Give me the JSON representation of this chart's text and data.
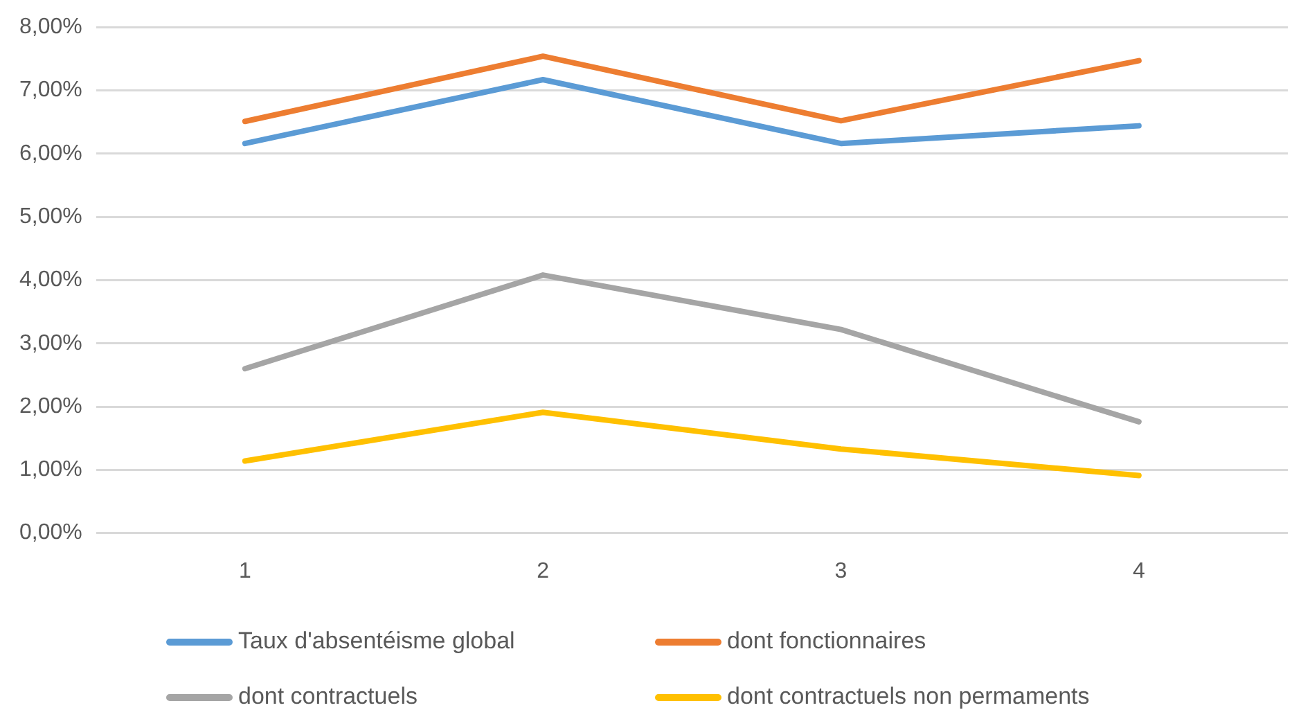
{
  "chart_data": {
    "type": "line",
    "categories": [
      "1",
      "2",
      "3",
      "4"
    ],
    "series": [
      {
        "name": "Taux d'absentéisme global",
        "color": "#5b9bd5",
        "values": [
          6.16,
          7.17,
          6.16,
          6.44
        ]
      },
      {
        "name": "dont fonctionnaires",
        "color": "#ed7d31",
        "values": [
          6.51,
          7.54,
          6.52,
          7.47
        ]
      },
      {
        "name": "dont contractuels",
        "color": "#a5a5a5",
        "values": [
          2.6,
          4.08,
          3.22,
          1.76
        ]
      },
      {
        "name": "dont contractuels non permaments",
        "color": "#ffc000",
        "values": [
          1.14,
          1.91,
          1.33,
          0.91
        ]
      }
    ],
    "ylim": [
      0,
      8
    ],
    "yticks": [
      {
        "value": 0,
        "label": "0,00%"
      },
      {
        "value": 1,
        "label": "1,00%"
      },
      {
        "value": 2,
        "label": "2,00%"
      },
      {
        "value": 3,
        "label": "3,00%"
      },
      {
        "value": 4,
        "label": "4,00%"
      },
      {
        "value": 5,
        "label": "5,00%"
      },
      {
        "value": 6,
        "label": "6,00%"
      },
      {
        "value": 7,
        "label": "7,00%"
      },
      {
        "value": 8,
        "label": "8,00%"
      }
    ],
    "grid": "y",
    "legend": "bottom",
    "marker": "none",
    "line_style": "solid"
  }
}
